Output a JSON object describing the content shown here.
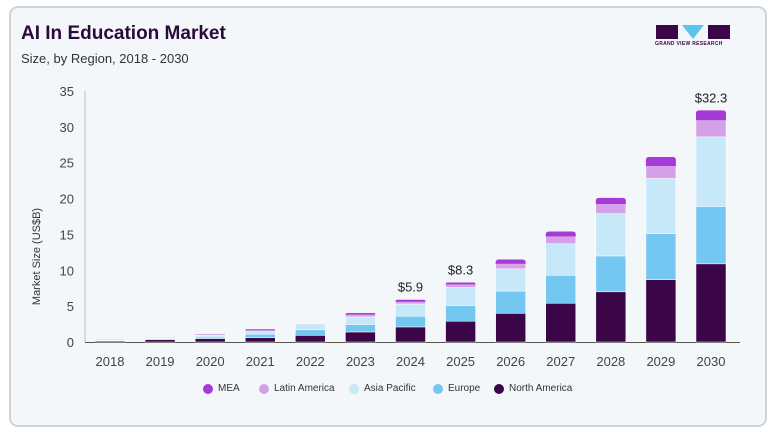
{
  "header": {
    "title": "AI In Education Market",
    "subtitle": "Size, by Region, 2018 - 2030",
    "logo_text": "GRAND VIEW RESEARCH"
  },
  "chart_data": {
    "type": "bar",
    "stacked": true,
    "title": "AI In Education Market",
    "subtitle": "Size, by Region, 2018 - 2030",
    "xlabel": "",
    "ylabel": "Market Size (US$B)",
    "ylim": [
      0,
      35
    ],
    "yticks": [
      0,
      5,
      10,
      15,
      20,
      25,
      30,
      35
    ],
    "grid": false,
    "legend_position": "bottom",
    "categories": [
      "2018",
      "2019",
      "2020",
      "2021",
      "2022",
      "2023",
      "2024",
      "2025",
      "2026",
      "2027",
      "2028",
      "2029",
      "2030"
    ],
    "series": [
      {
        "name": "North America",
        "color": "#3a0647",
        "values": [
          0.15,
          0.33,
          0.47,
          0.6,
          0.93,
          1.4,
          2.1,
          2.9,
          4.0,
          5.4,
          7.0,
          8.7,
          10.9
        ]
      },
      {
        "name": "Europe",
        "color": "#74c7f0",
        "values": [
          0.06,
          0.12,
          0.23,
          0.5,
          0.77,
          1.05,
          1.5,
          2.2,
          3.1,
          3.9,
          5.0,
          6.4,
          8.0
        ]
      },
      {
        "name": "Asia Pacific",
        "color": "#c7e8f8",
        "values": [
          0.05,
          0.12,
          0.23,
          0.35,
          0.75,
          1.05,
          1.7,
          2.5,
          3.1,
          4.4,
          5.9,
          7.7,
          9.7
        ]
      },
      {
        "name": "Latin America",
        "color": "#d4a0e8",
        "values": [
          0.02,
          0.05,
          0.08,
          0.17,
          0.03,
          0.3,
          0.3,
          0.4,
          0.7,
          1.0,
          1.3,
          1.7,
          2.3
        ]
      },
      {
        "name": "MEA",
        "color": "#a53ad6",
        "values": [
          0.02,
          0.03,
          0.06,
          0.15,
          0.02,
          0.25,
          0.3,
          0.3,
          0.6,
          0.7,
          0.9,
          1.3,
          1.4
        ]
      }
    ],
    "data_labels": {
      "2024": "$5.9",
      "2025": "$8.3",
      "2030": "$32.3"
    },
    "legend_order": [
      "MEA",
      "Latin America",
      "Asia Pacific",
      "Europe",
      "North America"
    ]
  }
}
